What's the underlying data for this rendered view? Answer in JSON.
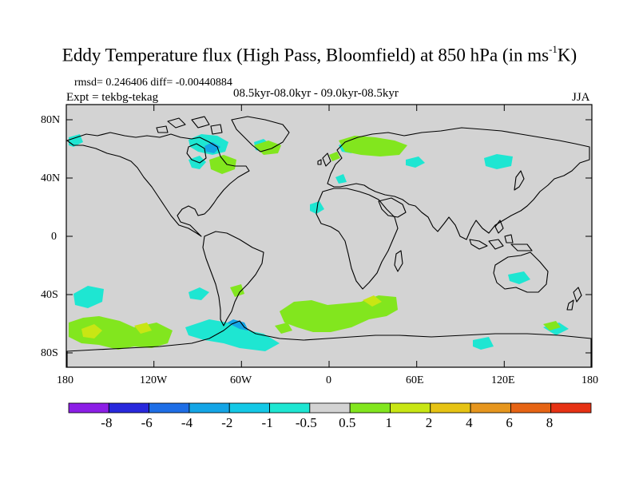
{
  "title": {
    "text": "Eddy Temperature flux (High Pass, Bloomfield) at 850 hPa (in ms",
    "sup": "-1",
    "tail": "K)"
  },
  "stats": {
    "rmsd_diff": "rmsd= 0.246406 diff= -0.00440884",
    "expt": "Expt = tekbg-tekag",
    "period": "08.5kyr-08.0kyr - 09.0kyr-08.5kyr",
    "season": "JJA"
  },
  "map": {
    "lat_labels": [
      "80N",
      "40N",
      "0",
      "40S",
      "80S"
    ],
    "lon_labels": [
      "180",
      "120W",
      "60W",
      "0",
      "60E",
      "120E",
      "180"
    ],
    "background_color": "#d3d3d3"
  },
  "colorbar": {
    "colors": [
      "#8c1ee6",
      "#2828dc",
      "#1e6ee6",
      "#14a5e6",
      "#14c8e6",
      "#1ee6d2",
      "#d3d3d3",
      "#82e61e",
      "#c8e614",
      "#e6c314",
      "#e6961e",
      "#e66414",
      "#e63214"
    ],
    "tick_labels": [
      "-8",
      "-6",
      "-4",
      "-2",
      "-1",
      "-0.5",
      "0.5",
      "1",
      "2",
      "4",
      "6",
      "8"
    ]
  }
}
